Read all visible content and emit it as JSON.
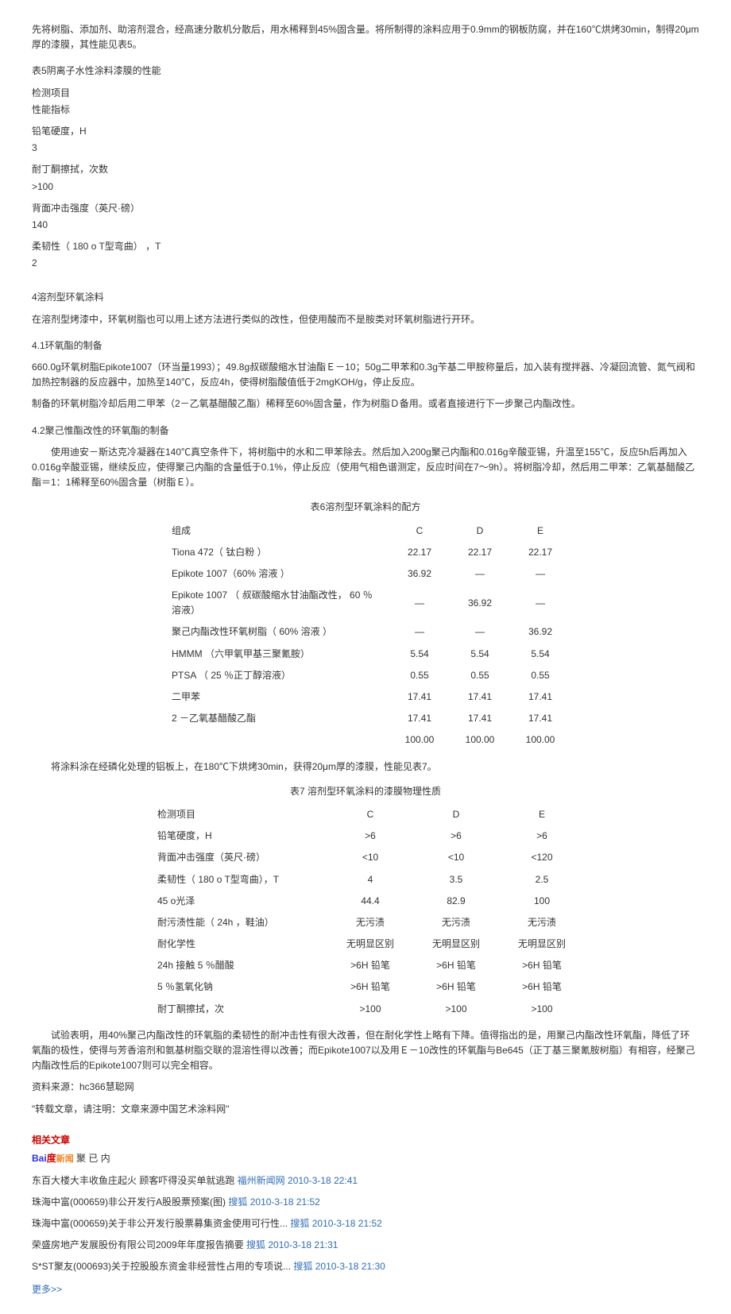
{
  "intro": "先将树脂、添加剂、助溶剂混合，经高速分散机分散后，用水稀释到45%固含量。将所制得的涂料应用于0.9mm的钢板防腐，并在160℃烘烤30min，制得20μm厚的漆膜，其性能见表5。",
  "table5_title": "表5阴离子水性涂料漆膜的性能",
  "t5_r1a": "检测项目",
  "t5_r1b": "性能指标",
  "t5_r2a": "铅笔硬度，H",
  "t5_r2b": "3",
  "t5_r3a": "耐丁酮擦拭，次数",
  "t5_r3b": ">100",
  "t5_r4a": "背面冲击强度（英尺·磅）",
  "t5_r4b": "140",
  "t5_r5a": "柔韧性（ 180 o  T型弯曲） ，T",
  "t5_r5b": "2",
  "sec4_title": "4溶剂型环氧涂料",
  "sec4_p1": "在溶剂型烤漆中，环氧树脂也可以用上述方法进行类似的改性，但使用酸而不是胺类对环氧树脂进行开环。",
  "sec41_title": "4.1环氧酯的制备",
  "sec41_p1": "660.0g环氧树脂Epikote1007（环当量1993）；49.8g叔碳酸缩水甘油酯Ｅ－10；50g二甲苯和0.3g苄基二甲胺称量后，加入装有搅拌器、冷凝回流管、氮气阀和加热控制器的反应器中，加热至140℃，反应4h，使得树脂酸值低于2mgKOH/g，停止反应。",
  "sec41_p2": "制备的环氧树脂冷却后用二甲苯（2－乙氧基醋酸乙酯）稀释至60%固含量，作为树脂Ｄ备用。或者直接进行下一步聚己内酯改性。",
  "sec42_title": "4.2聚己惟酯改性的环氧酯的制备",
  "sec42_p1": "使用迪安－斯达克冷凝器在140℃真空条件下，将树脂中的水和二甲苯除去。然后加入200g聚己内酯和0.016g辛酸亚锡，升温至155℃，反应5h后再加入0.016g辛酸亚锡，继续反应，使得聚己内酯的含量低于0.1%，停止反应（使用气相色谱测定，反应时间在7～9h）。将树脂冷却，然后用二甲苯：乙氧基醋酸乙酯＝1：1稀释至60%固含量（树脂Ｅ）。",
  "table6_title": "表6溶剂型环氧涂料的配方",
  "t6_h0": "组成",
  "t6_hC": "C",
  "t6_hD": "D",
  "t6_hE": "E",
  "t6_rows": [
    {
      "n": "Tiona 472（ 钛白粉 ）",
      "c": "22.17",
      "d": "22.17",
      "e": "22.17"
    },
    {
      "n": "Epikote 1007（60% 溶液 ）",
      "c": "36.92",
      "d": "—",
      "e": "—"
    },
    {
      "n": "Epikote 1007 （ 叔碳酸缩水甘油酯改性，  60 ％溶液）",
      "c": "—",
      "d": "36.92",
      "e": "—"
    },
    {
      "n": "聚己内酯改性环氧树脂（ 60% 溶液 ）",
      "c": "—",
      "d": "—",
      "e": "36.92"
    },
    {
      "n": "HMMM （六甲氧甲基三聚氰胺）",
      "c": "5.54",
      "d": "5.54",
      "e": "5.54"
    },
    {
      "n": "PTSA （ 25 ％正丁醇溶液）",
      "c": "0.55",
      "d": "0.55",
      "e": "0.55"
    },
    {
      "n": "二甲苯",
      "c": "17.41",
      "d": "17.41",
      "e": "17.41"
    },
    {
      "n": "2 －乙氧基醋酸乙酯",
      "c": "17.41",
      "d": "17.41",
      "e": "17.41"
    },
    {
      "n": "",
      "c": "100.00",
      "d": "100.00",
      "e": "100.00"
    }
  ],
  "table6_after": "将涂料涂在经磷化处理的铝板上，在180℃下烘烤30min，获得20μm厚的漆膜，性能见表7。",
  "table7_title": "表7 溶剂型环氧涂料的漆膜物理性质",
  "t7_h0": "检测项目",
  "t7_hC": "C",
  "t7_hD": "D",
  "t7_hE": "E",
  "t7_rows": [
    {
      "n": "铅笔硬度，H",
      "c": ">6",
      "d": ">6",
      "e": ">6"
    },
    {
      "n": "背面冲击强度（英尺·磅）",
      "c": "<10",
      "d": "<10",
      "e": "<120"
    },
    {
      "n": "柔韧性（ 180 o  T型弯曲），T",
      "c": "4",
      "d": "3.5",
      "e": "2.5"
    },
    {
      "n": "45 o光泽",
      "c": "44.4",
      "d": "82.9",
      "e": "100"
    },
    {
      "n": "耐污渍性能（ 24h ，鞋油）",
      "c": "无污渍",
      "d": "无污渍",
      "e": "无污渍"
    },
    {
      "n": "耐化学性",
      "c": "无明显区别",
      "d": "无明显区别",
      "e": "无明显区别"
    },
    {
      "n": "24h 接触 5 ％醋酸",
      "c": ">6H 铅笔",
      "d": ">6H 铅笔",
      "e": ">6H 铅笔"
    },
    {
      "n": "5 ％氢氧化钠",
      "c": ">6H 铅笔",
      "d": ">6H 铅笔",
      "e": ">6H 铅笔"
    },
    {
      "n": "耐丁酮擦拭，次",
      "c": ">100",
      "d": ">100",
      "e": ">100"
    }
  ],
  "conclusion": "试验表明，用40%聚己内酯改性的环氧脂的柔韧性的耐冲击性有很大改善，但在耐化学性上略有下降。值得指出的是，用聚己内酯改性环氧酯，降低了环氧酯的极性，使得与芳香溶剂和氨基树脂交联的混溶性得以改善；而Epikote1007以及用Ｅ－10改性的环氧酯与Be645（正丁基三聚氰胺树脂）有相容，经聚己内酯改性后的Epikote1007则可以完全相容。",
  "source_line": "资料来源：hc366慧聪网",
  "reprint_line": "\"转载文章，请注明：文章来源中国艺术涂料网\"",
  "related_heading": "相关文章",
  "baidu_brand": {
    "bai": "Bai",
    "du": "度",
    "news": "新闻"
  },
  "baidu_keyword": "聚 已 内",
  "news": [
    {
      "title": "东百大楼大丰收鱼庄起火 顾客吓得没买单就逃跑 ",
      "source": "福州新闻网",
      "date": "2010-3-18 22:41"
    },
    {
      "title": "珠海中富(000659)非公开发行A股股票预案(图) ",
      "source": "搜狐",
      "date": "2010-3-18 21:52"
    },
    {
      "title": "珠海中富(000659)关于非公开发行股票募集资金使用可行性... ",
      "source": "搜狐",
      "date": "2010-3-18 21:52"
    },
    {
      "title": "荣盛房地产发展股份有限公司2009年年度报告摘要 ",
      "source": "搜狐",
      "date": "2010-3-18 21:31"
    },
    {
      "title": "S*ST聚友(000693)关于控股股东资金非经营性占用的专项说... ",
      "source": "搜狐",
      "date": "2010-3-18 21:30"
    }
  ],
  "more": "更多>>"
}
